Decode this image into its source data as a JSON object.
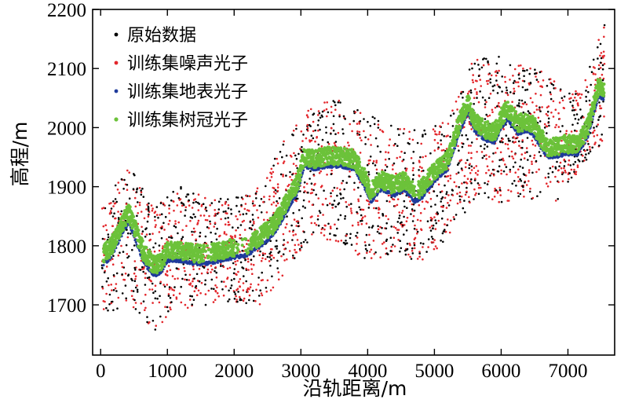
{
  "chart_data": {
    "type": "scatter",
    "xlabel": "沿轨距离/m",
    "ylabel": "高程/m",
    "xlim": [
      -120,
      7700
    ],
    "ylim": [
      1615,
      2200
    ],
    "xticks": [
      0,
      1000,
      2000,
      3000,
      4000,
      5000,
      6000,
      7000
    ],
    "yticks": [
      1700,
      1800,
      1900,
      2000,
      2100,
      2200
    ],
    "grid": false,
    "legend_position": "top-left",
    "series": [
      {
        "name": "原始数据",
        "color": "#000000",
        "marker": "dot"
      },
      {
        "name": "训练集噪声光子",
        "color": "#e3262b",
        "marker": "dot"
      },
      {
        "name": "训练集地表光子",
        "color": "#1f3b9b",
        "marker": "dot"
      },
      {
        "name": "训练集树冠光子",
        "color": "#6cc23a",
        "marker": "dot"
      }
    ],
    "ground_profile": {
      "x": [
        0,
        150,
        300,
        420,
        520,
        650,
        800,
        900,
        1000,
        1200,
        1400,
        1600,
        1800,
        2000,
        2200,
        2400,
        2600,
        2800,
        2950,
        3050,
        3200,
        3400,
        3600,
        3800,
        3950,
        4050,
        4200,
        4400,
        4550,
        4700,
        4800,
        5000,
        5200,
        5400,
        5500,
        5600,
        5750,
        5900,
        6000,
        6100,
        6250,
        6400,
        6500,
        6600,
        6700,
        6800,
        6950,
        7150,
        7300,
        7450,
        7550
      ],
      "y": [
        1765,
        1780,
        1815,
        1840,
        1810,
        1770,
        1750,
        1755,
        1775,
        1775,
        1770,
        1770,
        1775,
        1780,
        1785,
        1800,
        1820,
        1860,
        1890,
        1935,
        1930,
        1935,
        1935,
        1930,
        1900,
        1875,
        1895,
        1885,
        1895,
        1875,
        1880,
        1910,
        1930,
        2000,
        2025,
        1995,
        1980,
        1975,
        2000,
        2015,
        1990,
        1995,
        1985,
        1965,
        1950,
        1950,
        1955,
        1955,
        1985,
        2050,
        2050
      ]
    },
    "photon_band": {
      "x": [
        0,
        400,
        800,
        1200,
        1600,
        2000,
        2400,
        2800,
        3200,
        3600,
        4000,
        4400,
        4800,
        5200,
        5600,
        6000,
        6400,
        6800,
        7200,
        7550
      ],
      "low": [
        1680,
        1700,
        1655,
        1690,
        1700,
        1705,
        1700,
        1760,
        1820,
        1800,
        1770,
        1790,
        1770,
        1810,
        1880,
        1870,
        1880,
        1870,
        1930,
        1980
      ],
      "high": [
        1860,
        1940,
        1870,
        1900,
        1880,
        1880,
        1900,
        1990,
        2040,
        2050,
        2030,
        2000,
        2000,
        2010,
        2120,
        2120,
        2110,
        2080,
        2060,
        2180
      ]
    }
  }
}
